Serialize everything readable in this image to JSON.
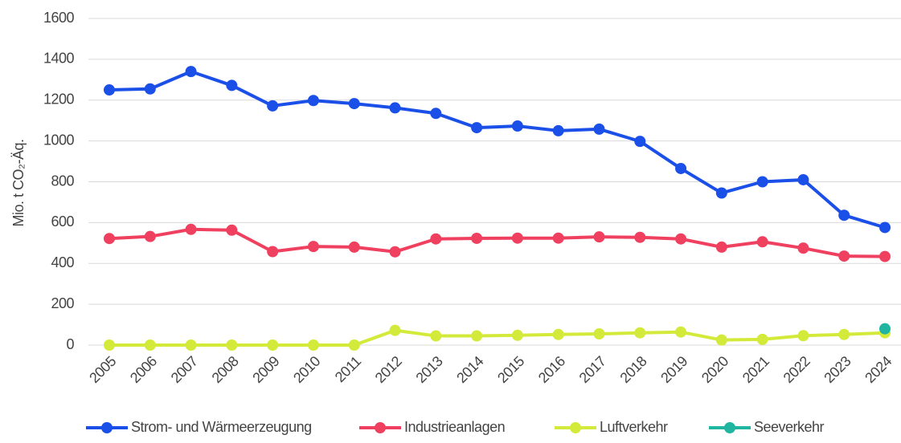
{
  "chart_data": {
    "type": "line",
    "ylabel": "Mio. t CO₂-Äq.",
    "categories": [
      "2005",
      "2006",
      "2007",
      "2008",
      "2009",
      "2010",
      "2011",
      "2012",
      "2013",
      "2014",
      "2015",
      "2016",
      "2017",
      "2018",
      "2019",
      "2020",
      "2021",
      "2022",
      "2023",
      "2024"
    ],
    "series": [
      {
        "name": "Strom- und Wärmeerzeugung",
        "color": "#1a4fe8",
        "values": [
          1250,
          1255,
          1340,
          1272,
          1172,
          1198,
          1183,
          1162,
          1135,
          1065,
          1073,
          1050,
          1058,
          998,
          865,
          745,
          800,
          810,
          636,
          576
        ]
      },
      {
        "name": "Industrieanlagen",
        "color": "#f0405f",
        "values": [
          522,
          532,
          567,
          563,
          458,
          483,
          480,
          457,
          520,
          523,
          524,
          524,
          530,
          528,
          520,
          480,
          506,
          475,
          436,
          434
        ]
      },
      {
        "name": "Luftverkehr",
        "color": "#d4ea3a",
        "values": [
          0,
          0,
          0,
          0,
          0,
          0,
          0,
          72,
          45,
          45,
          48,
          52,
          55,
          60,
          64,
          25,
          28,
          46,
          52,
          60
        ]
      },
      {
        "name": "Seeverkehr",
        "color": "#1fb5a0",
        "values": [
          null,
          null,
          null,
          null,
          null,
          null,
          null,
          null,
          null,
          null,
          null,
          null,
          null,
          null,
          null,
          null,
          null,
          null,
          null,
          80
        ]
      }
    ],
    "ylim": [
      0,
      1600
    ],
    "yticks": [
      0,
      200,
      400,
      600,
      800,
      1000,
      1200,
      1400,
      1600
    ],
    "grid": true,
    "legend": "bottom"
  }
}
